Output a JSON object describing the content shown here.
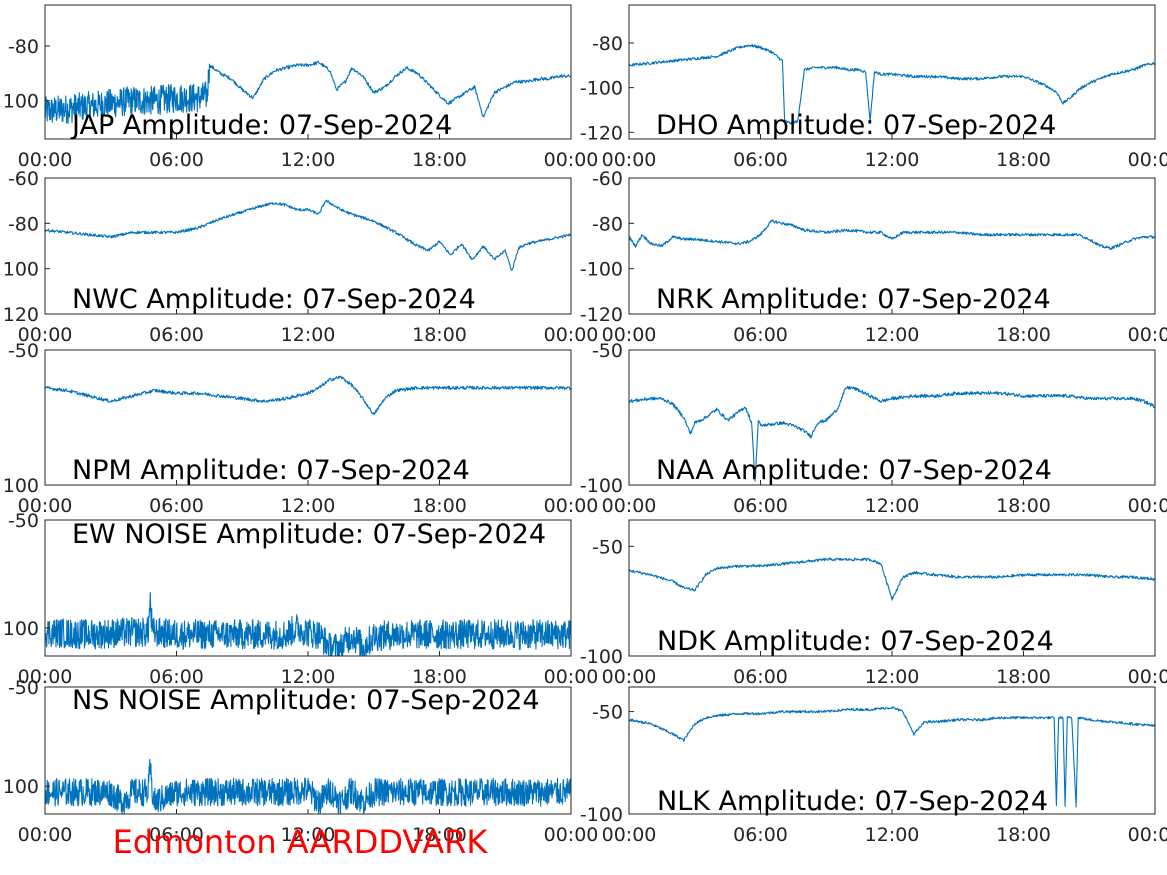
{
  "figure": {
    "footer_title": "Edmonton AARDDVARK",
    "footer_color": "#ff0000",
    "line_color": "#0072bd"
  },
  "chart_data": [
    {
      "type": "line",
      "title": "JAP Amplitude: 07-Sep-2024",
      "x_ticks": [
        "00:00",
        "06:00",
        "12:00",
        "18:00",
        "00:00"
      ],
      "y_ticks": [
        {
          "v": -80,
          "label": "-80"
        },
        {
          "v": -100,
          "label": "100"
        }
      ],
      "ylim": [
        -114,
        -65
      ],
      "noise_until": 7.5,
      "x": [
        0,
        1,
        2,
        3,
        4,
        5,
        6,
        7,
        7.4,
        7.5,
        8,
        8.5,
        9,
        9.5,
        10,
        10.5,
        11,
        11.5,
        12,
        12.5,
        13,
        13.3,
        13.7,
        14,
        14.5,
        15,
        15.5,
        16,
        16.5,
        17,
        17.5,
        18,
        18.4,
        18.8,
        19.2,
        19.6,
        20,
        20.5,
        21,
        21.5,
        22,
        22.5,
        23,
        23.5,
        24
      ],
      "y": [
        -104,
        -103,
        -102,
        -101,
        -100,
        -100,
        -99,
        -99,
        -98,
        -87,
        -90,
        -92,
        -96,
        -99,
        -92,
        -89,
        -88,
        -87,
        -87,
        -86,
        -89,
        -96,
        -93,
        -88,
        -91,
        -97,
        -95,
        -91,
        -88,
        -90,
        -94,
        -98,
        -101,
        -99,
        -97,
        -95,
        -106,
        -97,
        -95,
        -93,
        -93,
        -92,
        -92,
        -91,
        -91
      ]
    },
    {
      "type": "line",
      "title": "DHO Amplitude: 07-Sep-2024",
      "x_ticks": [
        "00:00",
        "06:00",
        "12:00",
        "18:00",
        "00:00"
      ],
      "y_ticks": [
        {
          "v": -80,
          "label": "-80"
        },
        {
          "v": -100,
          "label": "-100"
        },
        {
          "v": -120,
          "label": "-120"
        }
      ],
      "ylim": [
        -123,
        -63
      ],
      "x": [
        0,
        1,
        2,
        3,
        4,
        4.5,
        5,
        5.5,
        6,
        6.5,
        7,
        7.1,
        7.4,
        7.7,
        8,
        8.5,
        9,
        9.5,
        10,
        10.5,
        10.8,
        11,
        11.2,
        11.5,
        12,
        13,
        14,
        15,
        16,
        17,
        18,
        18.5,
        19,
        19.5,
        19.8,
        20.2,
        20.5,
        21,
        21.5,
        22,
        22.5,
        23,
        23.5,
        24
      ],
      "y": [
        -90,
        -89,
        -88,
        -87,
        -86,
        -84,
        -82,
        -81,
        -82,
        -84,
        -88,
        -115,
        -116,
        -115,
        -92,
        -91,
        -91,
        -91,
        -92,
        -92,
        -93,
        -115,
        -93,
        -94,
        -94,
        -95,
        -95,
        -96,
        -96,
        -95,
        -95,
        -97,
        -99,
        -102,
        -107,
        -104,
        -101,
        -98,
        -96,
        -94,
        -93,
        -92,
        -90,
        -89
      ]
    },
    {
      "type": "line",
      "title": "NWC Amplitude: 07-Sep-2024",
      "x_ticks": [
        "00:00",
        "06:00",
        "12:00",
        "18:00",
        "00:00"
      ],
      "y_ticks": [
        {
          "v": -60,
          "label": "-60"
        },
        {
          "v": -80,
          "label": "-80"
        },
        {
          "v": -100,
          "label": "100"
        },
        {
          "v": -120,
          "label": "120"
        }
      ],
      "ylim": [
        -120,
        -60
      ],
      "x": [
        0,
        1,
        2,
        3,
        4,
        5,
        6,
        7,
        8,
        9,
        10,
        10.5,
        11,
        11.5,
        12,
        12.5,
        12.8,
        13,
        13.5,
        14,
        15,
        16,
        17,
        17.5,
        18,
        18.5,
        19,
        19.5,
        20,
        20.5,
        21,
        21.3,
        21.6,
        22,
        22.5,
        23,
        23.5,
        24
      ],
      "y": [
        -83,
        -84,
        -85,
        -86,
        -84,
        -84,
        -84,
        -82,
        -78,
        -75,
        -72,
        -71,
        -72,
        -74,
        -74,
        -76,
        -70,
        -71,
        -74,
        -76,
        -79,
        -84,
        -90,
        -92,
        -88,
        -94,
        -89,
        -96,
        -90,
        -96,
        -92,
        -101,
        -91,
        -89,
        -88,
        -87,
        -86,
        -85
      ]
    },
    {
      "type": "line",
      "title": "NRK Amplitude: 07-Sep-2024",
      "x_ticks": [
        "00:00",
        "06:00",
        "12:00",
        "18:00",
        "00:00"
      ],
      "y_ticks": [
        {
          "v": -60,
          "label": "-60"
        },
        {
          "v": -80,
          "label": "-80"
        },
        {
          "v": -100,
          "label": "-100"
        },
        {
          "v": -120,
          "label": "-120"
        }
      ],
      "ylim": [
        -120,
        -60
      ],
      "x": [
        0,
        0.3,
        0.6,
        1,
        1.5,
        2,
        2.5,
        3,
        4,
        5,
        5.5,
        6,
        6.5,
        7,
        7.5,
        8,
        9,
        10,
        11,
        11.5,
        12,
        12.5,
        13,
        14,
        15,
        16,
        17,
        18,
        19,
        20,
        20.5,
        21,
        21.5,
        22,
        22.5,
        23,
        23.5,
        24
      ],
      "y": [
        -86,
        -90,
        -85,
        -89,
        -90,
        -86,
        -87,
        -87,
        -88,
        -89,
        -88,
        -85,
        -79,
        -80,
        -81,
        -83,
        -84,
        -83,
        -84,
        -84,
        -87,
        -84,
        -84,
        -84,
        -84,
        -85,
        -85,
        -85,
        -85,
        -85,
        -85,
        -87,
        -90,
        -91,
        -89,
        -87,
        -86,
        -86
      ]
    },
    {
      "type": "line",
      "title": "NPM Amplitude: 07-Sep-2024",
      "x_ticks": [
        "00:00",
        "06:00",
        "12:00",
        "18:00",
        "00:00"
      ],
      "y_ticks": [
        {
          "v": -50,
          "label": "-50"
        },
        {
          "v": -100,
          "label": "100"
        }
      ],
      "ylim": [
        -100,
        -50
      ],
      "x": [
        0,
        1,
        2,
        3,
        4,
        5,
        6,
        7,
        8,
        9,
        10,
        11,
        12,
        12.5,
        13,
        13.5,
        14,
        14.5,
        15,
        15.5,
        16,
        17,
        18,
        19,
        20,
        21,
        22,
        23,
        24
      ],
      "y": [
        -64,
        -65,
        -67,
        -69,
        -67,
        -65,
        -66,
        -66,
        -67,
        -68,
        -69,
        -68,
        -66,
        -64,
        -61,
        -60,
        -63,
        -68,
        -74,
        -68,
        -65,
        -64,
        -64,
        -64,
        -64,
        -64,
        -64,
        -64,
        -64
      ]
    },
    {
      "type": "line",
      "title": "NAA Amplitude: 07-Sep-2024",
      "x_ticks": [
        "00:00",
        "06:00",
        "12:00",
        "18:00",
        "00:00"
      ],
      "y_ticks": [
        {
          "v": -50,
          "label": "-50"
        },
        {
          "v": -100,
          "label": "-100"
        }
      ],
      "ylim": [
        -100,
        -50
      ],
      "x": [
        0,
        1,
        1.5,
        2,
        2.5,
        2.8,
        3,
        3.5,
        4,
        4.5,
        5,
        5.3,
        5.6,
        5.75,
        5.9,
        6,
        7,
        7.5,
        8,
        8.3,
        8.6,
        9,
        9.5,
        9.9,
        10.2,
        10.5,
        11,
        11.5,
        12,
        13,
        14,
        15,
        16,
        17,
        18,
        19,
        20,
        21,
        22,
        23,
        23.5,
        24
      ],
      "y": [
        -69,
        -68,
        -68,
        -70,
        -75,
        -81,
        -77,
        -75,
        -72,
        -76,
        -73,
        -71,
        -77,
        -99,
        -76,
        -78,
        -77,
        -78,
        -80,
        -82,
        -77,
        -76,
        -72,
        -64,
        -64,
        -65,
        -67,
        -69,
        -68,
        -67,
        -67,
        -66,
        -66,
        -66,
        -67,
        -67,
        -67,
        -68,
        -68,
        -68,
        -69,
        -71
      ]
    },
    {
      "type": "line",
      "title": "EW NOISE Amplitude: 07-Sep-2024",
      "x_ticks": [
        "00:00",
        "06:00",
        "12:00",
        "18:00",
        "00:00"
      ],
      "y_ticks": [
        {
          "v": -50,
          "label": "-50"
        },
        {
          "v": -100,
          "label": "100"
        }
      ],
      "ylim": [
        -113,
        -50
      ],
      "noise_until": 24,
      "x": [
        0,
        2,
        4,
        4.7,
        4.8,
        4.9,
        6,
        8,
        10,
        11,
        11.5,
        12,
        12.5,
        13,
        13.5,
        14,
        14.5,
        15,
        16,
        18,
        20,
        22,
        24
      ],
      "y": [
        -102,
        -103,
        -102,
        -102,
        -88,
        -102,
        -103,
        -103,
        -103,
        -103,
        -100,
        -102,
        -103,
        -109,
        -109,
        -103,
        -109,
        -104,
        -103,
        -103,
        -103,
        -103,
        -103
      ]
    },
    {
      "type": "line",
      "title": "NDK Amplitude: 07-Sep-2024",
      "x_ticks": [
        "00:00",
        "06:00",
        "12:00",
        "18:00",
        "00:00"
      ],
      "y_ticks": [
        {
          "v": -50,
          "label": "-50"
        },
        {
          "v": -100,
          "label": "-100"
        }
      ],
      "ylim": [
        -100,
        -38
      ],
      "x": [
        0,
        1,
        2,
        2.5,
        3,
        3.5,
        4,
        5,
        6,
        7,
        8,
        9,
        10,
        11,
        11.5,
        12,
        12.5,
        13,
        14,
        15,
        16,
        17,
        18,
        19,
        20,
        21,
        22,
        23,
        24
      ],
      "y": [
        -61,
        -63,
        -66,
        -69,
        -70,
        -63,
        -60,
        -59,
        -59,
        -58,
        -57,
        -56,
        -56,
        -56,
        -58,
        -74,
        -64,
        -62,
        -63,
        -64,
        -64,
        -64,
        -63,
        -63,
        -63,
        -63,
        -64,
        -64,
        -65
      ]
    },
    {
      "type": "line",
      "title": "NS NOISE Amplitude: 07-Sep-2024",
      "x_ticks": [
        "00:00",
        "06:00",
        "12:00",
        "18:00",
        "00:00"
      ],
      "y_ticks": [
        {
          "v": -50,
          "label": "-50"
        },
        {
          "v": -100,
          "label": "100"
        }
      ],
      "ylim": [
        -114,
        -50
      ],
      "noise_until": 24,
      "x": [
        0,
        2,
        3,
        3.5,
        4,
        4.7,
        4.8,
        4.9,
        5,
        6,
        8,
        10,
        11,
        12,
        12.5,
        13,
        13.5,
        14,
        14.5,
        15,
        16,
        18,
        20,
        22,
        24
      ],
      "y": [
        -103,
        -103,
        -103,
        -108,
        -103,
        -103,
        -91,
        -103,
        -108,
        -103,
        -103,
        -103,
        -103,
        -102,
        -108,
        -102,
        -108,
        -102,
        -108,
        -103,
        -103,
        -103,
        -103,
        -103,
        -103
      ]
    },
    {
      "type": "line",
      "title": "NLK Amplitude: 07-Sep-2024",
      "x_ticks": [
        "00:00",
        "06:00",
        "12:00",
        "18:00",
        "00:00"
      ],
      "y_ticks": [
        {
          "v": -50,
          "label": "-50"
        },
        {
          "v": -100,
          "label": "-100"
        }
      ],
      "ylim": [
        -100,
        -38
      ],
      "x": [
        0,
        1,
        2,
        2.5,
        3,
        3.5,
        4,
        5,
        6,
        7,
        8,
        9,
        10,
        11,
        12,
        12.5,
        13,
        13.5,
        14,
        15,
        16,
        17,
        18,
        19,
        19.4,
        19.5,
        19.6,
        19.8,
        19.9,
        20,
        20.2,
        20.4,
        20.5,
        20.6,
        21,
        22,
        23,
        24
      ],
      "y": [
        -54,
        -56,
        -61,
        -64,
        -56,
        -53,
        -52,
        -51,
        -51,
        -50,
        -50,
        -50,
        -49,
        -49,
        -48,
        -50,
        -61,
        -55,
        -55,
        -54,
        -54,
        -53,
        -53,
        -53,
        -53,
        -96,
        -53,
        -53,
        -96,
        -53,
        -53,
        -96,
        -53,
        -53,
        -54,
        -55,
        -56,
        -57
      ]
    }
  ]
}
